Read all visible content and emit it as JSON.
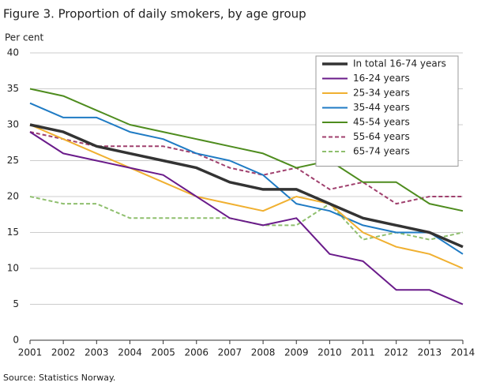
{
  "chart_data": {
    "type": "line",
    "title": "Figure 3. Proportion of daily smokers, by age group",
    "y_label": "Per cent",
    "source": "Source: Statistics Norway.",
    "x": [
      2001,
      2002,
      2003,
      2004,
      2005,
      2006,
      2007,
      2008,
      2009,
      2010,
      2011,
      2012,
      2013,
      2014
    ],
    "xlim": [
      2001,
      2014
    ],
    "xticks": [
      2001,
      2002,
      2003,
      2004,
      2005,
      2006,
      2007,
      2008,
      2009,
      2010,
      2011,
      2012,
      2013,
      2014
    ],
    "ylim": [
      0,
      40
    ],
    "yticks": [
      0,
      5,
      10,
      15,
      20,
      25,
      30,
      35,
      40
    ],
    "grid": true,
    "legend": "upper right",
    "series": [
      {
        "name": "In total 16-74 years",
        "color": "#333333",
        "width": 3.5,
        "dash": false,
        "values": [
          30,
          29,
          27,
          26,
          25,
          24,
          22,
          21,
          21,
          19,
          17,
          16,
          15,
          13
        ]
      },
      {
        "name": "16-24 years",
        "color": "#6a1b8a",
        "width": 2,
        "dash": false,
        "values": [
          29,
          26,
          25,
          24,
          23,
          20,
          17,
          16,
          17,
          12,
          11,
          7,
          7,
          5
        ]
      },
      {
        "name": "25-34 years",
        "color": "#f0b030",
        "width": 2,
        "dash": false,
        "values": [
          30,
          28,
          26,
          24,
          22,
          20,
          19,
          18,
          20,
          19,
          15,
          13,
          12,
          10
        ]
      },
      {
        "name": "35-44 years",
        "color": "#1f7bc4",
        "width": 2,
        "dash": false,
        "values": [
          33,
          31,
          31,
          29,
          28,
          26,
          25,
          23,
          19,
          18,
          16,
          15,
          15,
          12
        ]
      },
      {
        "name": "45-54 years",
        "color": "#4e8c1e",
        "width": 2,
        "dash": false,
        "values": [
          35,
          34,
          32,
          30,
          29,
          28,
          27,
          26,
          24,
          25,
          22,
          22,
          19,
          18
        ]
      },
      {
        "name": "55-64 years",
        "color": "#a0406e",
        "width": 2,
        "dash": true,
        "values": [
          29,
          28,
          27,
          27,
          27,
          26,
          24,
          23,
          24,
          21,
          22,
          19,
          20,
          20
        ]
      },
      {
        "name": "65-74 years",
        "color": "#8fbf6e",
        "width": 2,
        "dash": true,
        "values": [
          20,
          19,
          19,
          17,
          17,
          17,
          17,
          16,
          16,
          19,
          14,
          15,
          14,
          15
        ]
      }
    ]
  }
}
